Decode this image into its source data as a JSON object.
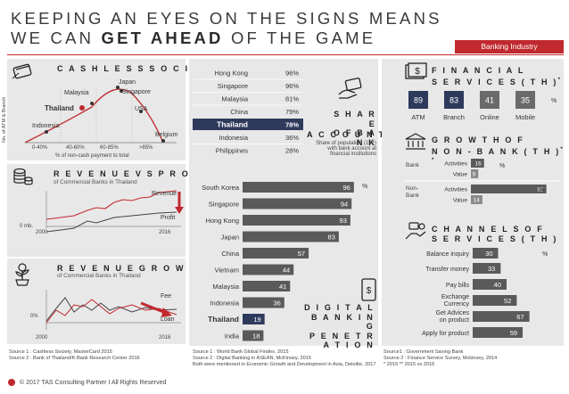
{
  "title": {
    "line1": "KEEPING AN EYES ON THE SIGNS MEANS",
    "line2_pre": "WE CAN ",
    "line2_bold": "GET AHEAD",
    "line2_post": " OF THE GAME"
  },
  "badge": "Banking Industry",
  "colors": {
    "accent": "#c0292e",
    "navy": "#2e3a5c",
    "bar_gray": "#5a5a5a",
    "panel": "#e8e8e8"
  },
  "cashless": {
    "title": "C A S H L E S S   S O C I E T Y",
    "ylabel": "No. of ATM & Branch",
    "xlabel": "% of non-cash payment to total",
    "ticks": [
      "0-40%",
      "40-60%",
      "60-85%",
      ">85%"
    ],
    "countries": [
      "Indonesia",
      "Thailand",
      "Malaysia",
      "Japan",
      "Singapore",
      "USA",
      "Belgium"
    ]
  },
  "rev_profit": {
    "title": "R E V E N U E   V S   P R O F I T",
    "sub": "of Commercial Banks in Thailand",
    "revenue": "Revenue",
    "profit": "Profit",
    "zero": "0 mb.",
    "x_start": "2000",
    "x_end": "2016"
  },
  "rev_growth": {
    "title": "R E V E N U E   G R O W T H",
    "sub": "of Commercial Banks in Thailand",
    "fee": "Fee",
    "loan": "Loan",
    "zero": "0%",
    "x_start": "2000",
    "x_end": "2016"
  },
  "source_left": [
    "Source 1 : Cashless Society, MasterCard 2015",
    "Source 2 : Bank of Thailand/K-Bank Research Center 2016"
  ],
  "copyright": "© 2017 TAS Consulting Partner  I  All Rights Reserved",
  "share": {
    "title1": "S H A R E",
    "title2": "O F   B A N K",
    "title3": "A C C O U N T",
    "star": "*",
    "note1": "Share of population (15+)",
    "note2": "with bank account at",
    "note3": "financial institutions"
  },
  "digital": {
    "title1": "D I G I T A L",
    "title2": "B A N K I N G",
    "title3": "P E N E T R A T I O N",
    "unit": "%"
  },
  "source_mid": [
    "Source 1 : World Bank Global Findex, 2015",
    "Source 2 : Digital Banking in ASEAN, McKinsey, 2015",
    "Both were mentioned in Economic Growth and Development in Asia, Deloitte, 2017"
  ],
  "financial": {
    "title1": "F I N A N C I A L",
    "title2": "S E R V I C E S ( T H )",
    "star": "*",
    "unit": "%"
  },
  "growth": {
    "title1": "G R O W T H   O F",
    "title2": "N O N - B A N K ( T H )",
    "star": "* *",
    "bank": "Bank",
    "nonbank1": "Non-",
    "nonbank2": "Bank",
    "activities": "Activities",
    "value": "Value",
    "unit": "%"
  },
  "channels": {
    "title1": "C H A N N E L S   O F",
    "title2": "S E R V I C E S ( T H )",
    "unit": "%"
  },
  "source_right": [
    "Source1 : Government Saving Bank",
    "Source 2 : Finance Service Survey, Mckinsey, 2014",
    "* 2016  ** 2015 vs 2016"
  ],
  "chart_data": [
    {
      "type": "table",
      "title": "Share of Bank Account",
      "unit": "%",
      "categories": [
        "Hong Kong",
        "Singapore",
        "Malaysia",
        "China",
        "Thailand",
        "Indonesia",
        "Philippines"
      ],
      "values": [
        96,
        96,
        81,
        79,
        78,
        36,
        28
      ],
      "highlight": "Thailand"
    },
    {
      "type": "bar",
      "title": "Digital Banking Penetration",
      "unit": "%",
      "categories": [
        "South Korea",
        "Singapore",
        "Hong Kong",
        "Japan",
        "China",
        "Vietnam",
        "Malaysia",
        "Indonesia",
        "Thailand",
        "India"
      ],
      "values": [
        96,
        94,
        93,
        83,
        57,
        44,
        41,
        36,
        19,
        18
      ],
      "highlight": "Thailand"
    },
    {
      "type": "table",
      "title": "Financial Services (TH)",
      "unit": "%",
      "categories": [
        "ATM",
        "Branch",
        "Online",
        "Mobile"
      ],
      "values": [
        89,
        83,
        41,
        35
      ]
    },
    {
      "type": "bar",
      "title": "Growth of Non-Bank (TH)",
      "unit": "%",
      "groups": [
        {
          "name": "Bank",
          "categories": [
            "Activities",
            "Value"
          ],
          "values": [
            16,
            9
          ]
        },
        {
          "name": "Non-Bank",
          "categories": [
            "Activities",
            "Value"
          ],
          "values": [
            92,
            14
          ]
        }
      ]
    },
    {
      "type": "bar",
      "title": "Channels of Services (TH)",
      "unit": "%",
      "categories": [
        "Balance inquiry",
        "Transfer money",
        "Pay bills",
        "Exchange Currency",
        "Get Advices on product",
        "Apply for product"
      ],
      "values": [
        30,
        33,
        40,
        52,
        67,
        59
      ]
    }
  ]
}
